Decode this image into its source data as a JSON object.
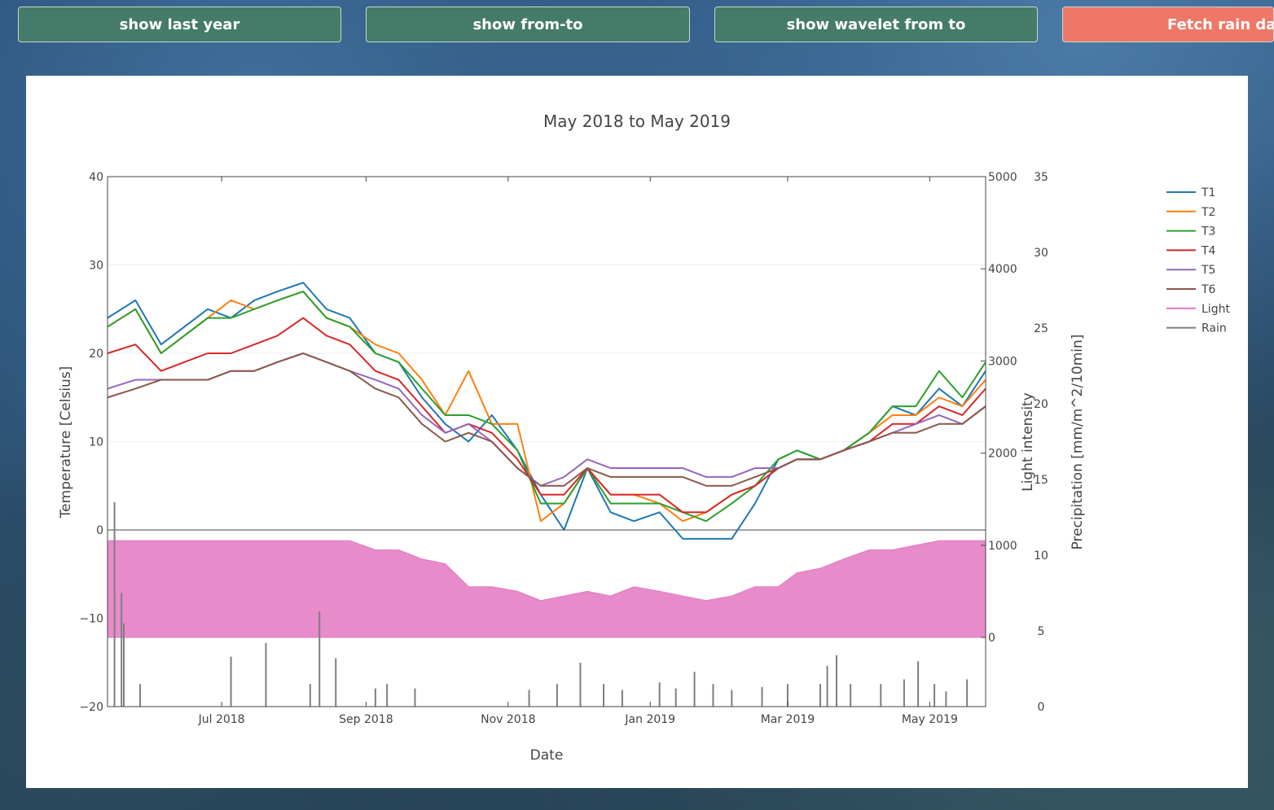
{
  "buttons": {
    "last_year": "show last year",
    "from_to": "show from-to",
    "wavelet": "show wavelet from to",
    "fetch_rain": "Fetch rain data"
  },
  "colors": {
    "button_green": "#457b69",
    "button_red": "#ef7767",
    "T1": "#1f77b4",
    "T2": "#ff7f0e",
    "T3": "#2ca02c",
    "T4": "#d62728",
    "T5": "#9467bd",
    "T6": "#8c564b",
    "Light": "#e377c2",
    "Rain": "#7f7f7f"
  },
  "chart_data": {
    "type": "line",
    "title": "May 2018 to May 2019",
    "xlabel": "Date",
    "ylabel": "Temperature [Celsius]",
    "y2label": "Light intensity",
    "y3label": "Precipitation [mm/m^2/10min]",
    "xlim": [
      "2018-05-13",
      "2019-05-25"
    ],
    "x_ticks": [
      {
        "date": "2018-07-01",
        "label": "Jul 2018"
      },
      {
        "date": "2018-09-01",
        "label": "Sep 2018"
      },
      {
        "date": "2018-11-01",
        "label": "Nov 2018"
      },
      {
        "date": "2019-01-01",
        "label": "Jan 2019"
      },
      {
        "date": "2019-03-01",
        "label": "Mar 2019"
      },
      {
        "date": "2019-05-01",
        "label": "May 2019"
      }
    ],
    "ylim": [
      -20,
      40
    ],
    "y_ticks": [
      40,
      30,
      20,
      10,
      0,
      -10,
      -20
    ],
    "y2lim": [
      0,
      5000
    ],
    "y2_ticks": [
      5000,
      4000,
      3000,
      2000,
      1000,
      0
    ],
    "y3lim": [
      0,
      35
    ],
    "y3_ticks": [
      35,
      30,
      25,
      20,
      15,
      10,
      5,
      0
    ],
    "grid": true,
    "legend_position": "right",
    "series": [
      {
        "name": "T1",
        "axis": "y",
        "x": [
          "2018-05-13",
          "2018-05-25",
          "2018-06-05",
          "2018-06-15",
          "2018-06-25",
          "2018-07-05",
          "2018-07-15",
          "2018-07-25",
          "2018-08-05",
          "2018-08-15",
          "2018-08-25",
          "2018-09-05",
          "2018-09-15",
          "2018-09-25",
          "2018-10-05",
          "2018-10-15",
          "2018-10-25",
          "2018-11-05",
          "2018-11-15",
          "2018-11-25",
          "2018-12-05",
          "2018-12-15",
          "2018-12-25",
          "2019-01-05",
          "2019-01-15",
          "2019-01-25",
          "2019-02-05",
          "2019-02-15",
          "2019-02-25",
          "2019-03-05",
          "2019-03-15",
          "2019-03-25",
          "2019-04-05",
          "2019-04-15",
          "2019-04-25",
          "2019-05-05",
          "2019-05-15",
          "2019-05-25"
        ],
        "y": [
          24,
          26,
          21,
          23,
          25,
          24,
          26,
          27,
          28,
          25,
          24,
          20,
          19,
          15,
          12,
          10,
          13,
          9,
          4,
          0,
          7,
          2,
          1,
          2,
          -1,
          -1,
          -1,
          3,
          8,
          9,
          8,
          9,
          11,
          14,
          13,
          16,
          14,
          18
        ]
      },
      {
        "name": "T2",
        "axis": "y",
        "x": [
          "2018-05-13",
          "2018-05-25",
          "2018-06-05",
          "2018-06-15",
          "2018-06-25",
          "2018-07-05",
          "2018-07-15",
          "2018-07-25",
          "2018-08-05",
          "2018-08-15",
          "2018-08-25",
          "2018-09-05",
          "2018-09-15",
          "2018-09-25",
          "2018-10-05",
          "2018-10-15",
          "2018-10-25",
          "2018-11-05",
          "2018-11-15",
          "2018-11-25",
          "2018-12-05",
          "2018-12-15",
          "2018-12-25",
          "2019-01-05",
          "2019-01-15",
          "2019-01-25",
          "2019-02-05",
          "2019-02-15",
          "2019-02-25",
          "2019-03-05",
          "2019-03-15",
          "2019-03-25",
          "2019-04-05",
          "2019-04-15",
          "2019-04-25",
          "2019-05-05",
          "2019-05-15",
          "2019-05-25"
        ],
        "y": [
          23,
          25,
          20,
          22,
          24,
          26,
          25,
          26,
          27,
          24,
          23,
          21,
          20,
          17,
          13,
          18,
          12,
          12,
          1,
          3,
          7,
          4,
          4,
          3,
          1,
          2,
          4,
          5,
          7,
          8,
          8,
          9,
          11,
          13,
          13,
          15,
          14,
          17
        ]
      },
      {
        "name": "T3",
        "axis": "y",
        "x": [
          "2018-05-13",
          "2018-05-25",
          "2018-06-05",
          "2018-06-15",
          "2018-06-25",
          "2018-07-05",
          "2018-07-15",
          "2018-07-25",
          "2018-08-05",
          "2018-08-15",
          "2018-08-25",
          "2018-09-05",
          "2018-09-15",
          "2018-09-25",
          "2018-10-05",
          "2018-10-15",
          "2018-10-25",
          "2018-11-05",
          "2018-11-15",
          "2018-11-25",
          "2018-12-05",
          "2018-12-15",
          "2018-12-25",
          "2019-01-05",
          "2019-01-15",
          "2019-01-25",
          "2019-02-05",
          "2019-02-15",
          "2019-02-25",
          "2019-03-05",
          "2019-03-15",
          "2019-03-25",
          "2019-04-05",
          "2019-04-15",
          "2019-04-25",
          "2019-05-05",
          "2019-05-15",
          "2019-05-25"
        ],
        "y": [
          23,
          25,
          20,
          22,
          24,
          24,
          25,
          26,
          27,
          24,
          23,
          20,
          19,
          16,
          13,
          13,
          12,
          9,
          3,
          3,
          7,
          3,
          3,
          3,
          2,
          1,
          3,
          5,
          8,
          9,
          8,
          9,
          11,
          14,
          14,
          18,
          15,
          19
        ]
      },
      {
        "name": "T4",
        "axis": "y",
        "x": [
          "2018-05-13",
          "2018-05-25",
          "2018-06-05",
          "2018-06-15",
          "2018-06-25",
          "2018-07-05",
          "2018-07-15",
          "2018-07-25",
          "2018-08-05",
          "2018-08-15",
          "2018-08-25",
          "2018-09-05",
          "2018-09-15",
          "2018-09-25",
          "2018-10-05",
          "2018-10-15",
          "2018-10-25",
          "2018-11-05",
          "2018-11-15",
          "2018-11-25",
          "2018-12-05",
          "2018-12-15",
          "2018-12-25",
          "2019-01-05",
          "2019-01-15",
          "2019-01-25",
          "2019-02-05",
          "2019-02-15",
          "2019-02-25",
          "2019-03-05",
          "2019-03-15",
          "2019-03-25",
          "2019-04-05",
          "2019-04-15",
          "2019-04-25",
          "2019-05-05",
          "2019-05-15",
          "2019-05-25"
        ],
        "y": [
          20,
          21,
          18,
          19,
          20,
          20,
          21,
          22,
          24,
          22,
          21,
          18,
          17,
          14,
          11,
          12,
          11,
          8,
          4,
          4,
          7,
          4,
          4,
          4,
          2,
          2,
          4,
          5,
          7,
          8,
          8,
          9,
          10,
          12,
          12,
          14,
          13,
          16
        ]
      },
      {
        "name": "T5",
        "axis": "y",
        "x": [
          "2018-05-13",
          "2018-05-25",
          "2018-06-05",
          "2018-06-15",
          "2018-06-25",
          "2018-07-05",
          "2018-07-15",
          "2018-07-25",
          "2018-08-05",
          "2018-08-15",
          "2018-08-25",
          "2018-09-05",
          "2018-09-15",
          "2018-09-25",
          "2018-10-05",
          "2018-10-15",
          "2018-10-25",
          "2018-11-05",
          "2018-11-15",
          "2018-11-25",
          "2018-12-05",
          "2018-12-15",
          "2018-12-25",
          "2019-01-05",
          "2019-01-15",
          "2019-01-25",
          "2019-02-05",
          "2019-02-15",
          "2019-02-25",
          "2019-03-05",
          "2019-03-15",
          "2019-03-25",
          "2019-04-05",
          "2019-04-15",
          "2019-04-25",
          "2019-05-05",
          "2019-05-15",
          "2019-05-25"
        ],
        "y": [
          16,
          17,
          17,
          17,
          17,
          18,
          18,
          19,
          20,
          19,
          18,
          17,
          16,
          13,
          11,
          12,
          10,
          7,
          5,
          6,
          8,
          7,
          7,
          7,
          7,
          6,
          6,
          7,
          7,
          8,
          8,
          9,
          10,
          11,
          12,
          13,
          12,
          14
        ]
      },
      {
        "name": "T6",
        "axis": "y",
        "x": [
          "2018-05-13",
          "2018-05-25",
          "2018-06-05",
          "2018-06-15",
          "2018-06-25",
          "2018-07-05",
          "2018-07-15",
          "2018-07-25",
          "2018-08-05",
          "2018-08-15",
          "2018-08-25",
          "2018-09-05",
          "2018-09-15",
          "2018-09-25",
          "2018-10-05",
          "2018-10-15",
          "2018-10-25",
          "2018-11-05",
          "2018-11-15",
          "2018-11-25",
          "2018-12-05",
          "2018-12-15",
          "2018-12-25",
          "2019-01-05",
          "2019-01-15",
          "2019-01-25",
          "2019-02-05",
          "2019-02-15",
          "2019-02-25",
          "2019-03-05",
          "2019-03-15",
          "2019-03-25",
          "2019-04-05",
          "2019-04-15",
          "2019-04-25",
          "2019-05-05",
          "2019-05-15",
          "2019-05-25"
        ],
        "y": [
          15,
          16,
          17,
          17,
          17,
          18,
          18,
          19,
          20,
          19,
          18,
          16,
          15,
          12,
          10,
          11,
          10,
          7,
          5,
          5,
          7,
          6,
          6,
          6,
          6,
          5,
          5,
          6,
          7,
          8,
          8,
          9,
          10,
          11,
          11,
          12,
          12,
          14
        ]
      },
      {
        "name": "Light",
        "axis": "y2",
        "x": [
          "2018-05-13",
          "2018-05-25",
          "2018-06-05",
          "2018-06-15",
          "2018-06-25",
          "2018-07-05",
          "2018-07-15",
          "2018-07-25",
          "2018-08-05",
          "2018-08-15",
          "2018-08-25",
          "2018-09-05",
          "2018-09-15",
          "2018-09-25",
          "2018-10-05",
          "2018-10-15",
          "2018-10-25",
          "2018-11-05",
          "2018-11-15",
          "2018-11-25",
          "2018-12-05",
          "2018-12-15",
          "2018-12-25",
          "2019-01-05",
          "2019-01-15",
          "2019-01-25",
          "2019-02-05",
          "2019-02-15",
          "2019-02-25",
          "2019-03-05",
          "2019-03-15",
          "2019-03-25",
          "2019-04-05",
          "2019-04-15",
          "2019-04-25",
          "2019-05-05",
          "2019-05-15",
          "2019-05-25"
        ],
        "y": [
          1050,
          1050,
          1050,
          1050,
          1050,
          1050,
          1050,
          1050,
          1050,
          1050,
          1050,
          950,
          950,
          850,
          800,
          550,
          550,
          500,
          400,
          450,
          500,
          450,
          550,
          500,
          450,
          400,
          450,
          550,
          550,
          700,
          750,
          850,
          950,
          950,
          1000,
          1050,
          1050,
          1050
        ]
      },
      {
        "name": "Rain",
        "axis": "y3",
        "x": [
          "2018-05-16",
          "2018-05-19",
          "2018-05-20",
          "2018-05-27",
          "2018-07-05",
          "2018-07-20",
          "2018-08-08",
          "2018-08-12",
          "2018-08-19",
          "2018-09-05",
          "2018-09-10",
          "2018-09-22",
          "2018-11-10",
          "2018-11-22",
          "2018-12-02",
          "2018-12-12",
          "2018-12-20",
          "2019-01-05",
          "2019-01-12",
          "2019-01-20",
          "2019-01-28",
          "2019-02-05",
          "2019-02-18",
          "2019-03-01",
          "2019-03-15",
          "2019-03-18",
          "2019-03-22",
          "2019-03-28",
          "2019-04-10",
          "2019-04-20",
          "2019-04-26",
          "2019-05-03",
          "2019-05-08",
          "2019-05-17"
        ],
        "y": [
          13.5,
          7.5,
          5.5,
          1.5,
          3.3,
          4.2,
          1.5,
          6.3,
          3.2,
          1.2,
          1.5,
          1.2,
          1.1,
          1.5,
          2.9,
          1.5,
          1.1,
          1.6,
          1.2,
          2.3,
          1.5,
          1.1,
          1.3,
          1.5,
          1.5,
          2.7,
          3.4,
          1.5,
          1.5,
          1.8,
          3.0,
          1.5,
          1.0,
          1.8
        ]
      }
    ]
  },
  "legend": [
    "T1",
    "T2",
    "T3",
    "T4",
    "T5",
    "T6",
    "Light",
    "Rain"
  ]
}
